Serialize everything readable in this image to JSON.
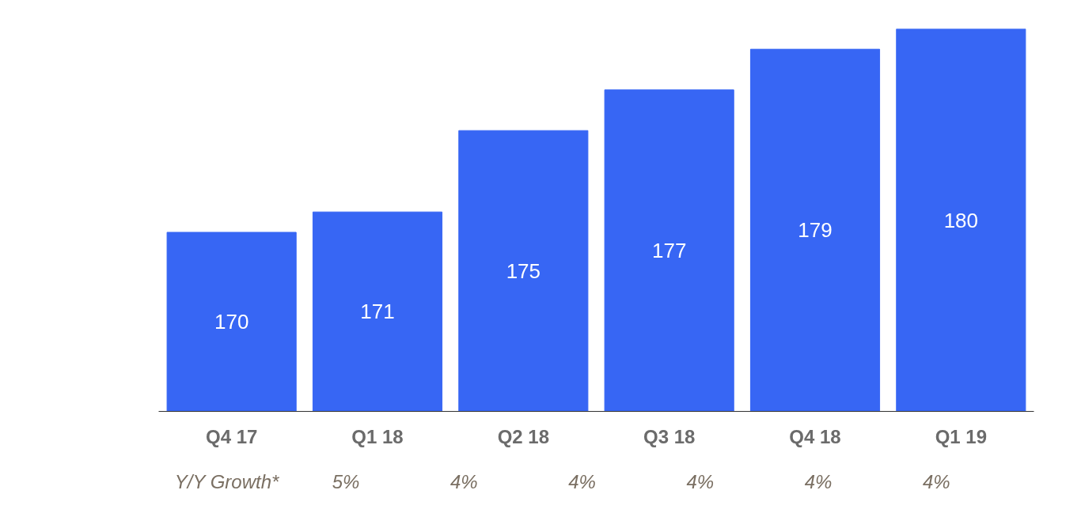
{
  "chart_data": {
    "type": "bar",
    "categories": [
      "Q4 17",
      "Q1 18",
      "Q2 18",
      "Q3 18",
      "Q4 18",
      "Q1 19"
    ],
    "values": [
      170,
      171,
      175,
      177,
      179,
      180
    ],
    "color": "#3766f4",
    "ylim": [
      161.2,
      180
    ],
    "tick_labels": "x",
    "data_labels": true,
    "annotations": [
      "Y/Y Growth*",
      "5%",
      "4%",
      "4%",
      "4%",
      "4%",
      "4%"
    ]
  }
}
